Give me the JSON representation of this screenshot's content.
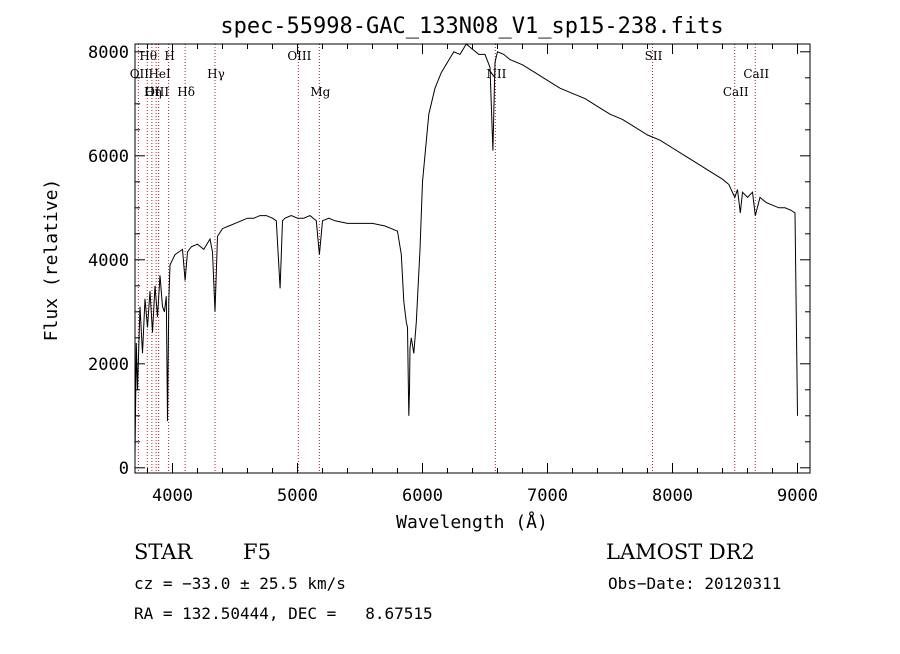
{
  "chart_data": {
    "type": "line",
    "title": "spec-55998-GAC_133N08_V1_sp15-238.fits",
    "xlabel": "Wavelength (Å)",
    "ylabel": "Flux (relative)",
    "xlim": [
      3700,
      9100
    ],
    "ylim": [
      -100,
      8150
    ],
    "xticks": [
      4000,
      5000,
      6000,
      7000,
      8000,
      9000
    ],
    "yticks": [
      0,
      2000,
      4000,
      6000,
      8000
    ],
    "grid": false,
    "series": [
      {
        "x": [
          3700,
          3710,
          3720,
          3740,
          3760,
          3780,
          3800,
          3820,
          3840,
          3860,
          3880,
          3900,
          3920,
          3935,
          3950,
          3960,
          3970,
          3980,
          4000,
          4020,
          4050,
          4080,
          4101,
          4120,
          4150,
          4200,
          4250,
          4300,
          4320,
          4340,
          4360,
          4400,
          4450,
          4500,
          4550,
          4600,
          4650,
          4700,
          4750,
          4800,
          4830,
          4861,
          4880,
          4900,
          4950,
          5000,
          5050,
          5100,
          5150,
          5175,
          5200,
          5250,
          5300,
          5400,
          5500,
          5600,
          5700,
          5750,
          5800,
          5830,
          5850,
          5870,
          5880,
          5890,
          5896,
          5900,
          5910,
          5930,
          5950,
          5980,
          6000,
          6050,
          6100,
          6150,
          6200,
          6250,
          6300,
          6350,
          6400,
          6450,
          6500,
          6540,
          6563,
          6580,
          6600,
          6650,
          6700,
          6800,
          6900,
          7000,
          7100,
          7200,
          7300,
          7400,
          7500,
          7600,
          7700,
          7800,
          7900,
          8000,
          8100,
          8200,
          8300,
          8400,
          8450,
          8498,
          8520,
          8542,
          8560,
          8600,
          8640,
          8662,
          8700,
          8750,
          8800,
          8850,
          8900,
          8950,
          8980,
          9000
        ],
        "y": [
          200,
          2400,
          1500,
          3100,
          2200,
          3250,
          2700,
          3400,
          2600,
          3500,
          2900,
          3700,
          3100,
          3000,
          3300,
          900,
          3200,
          3900,
          4000,
          4100,
          4150,
          4200,
          3600,
          4150,
          4250,
          4300,
          4200,
          4400,
          4150,
          3000,
          4450,
          4600,
          4650,
          4700,
          4750,
          4800,
          4800,
          4850,
          4850,
          4800,
          4750,
          3450,
          4750,
          4800,
          4850,
          4800,
          4800,
          4850,
          4750,
          4100,
          4750,
          4800,
          4750,
          4700,
          4700,
          4700,
          4650,
          4600,
          4550,
          4100,
          3200,
          2800,
          2700,
          1000,
          1500,
          2300,
          2500,
          2200,
          2800,
          4200,
          5500,
          6800,
          7300,
          7600,
          7800,
          8000,
          7950,
          8150,
          8050,
          7950,
          7950,
          7700,
          6100,
          7800,
          8000,
          7950,
          7850,
          7750,
          7600,
          7450,
          7300,
          7200,
          7100,
          6950,
          6800,
          6700,
          6550,
          6400,
          6300,
          6150,
          6000,
          5850,
          5700,
          5550,
          5450,
          5200,
          5350,
          4900,
          5300,
          5200,
          5300,
          4850,
          5200,
          5100,
          5050,
          5000,
          5000,
          4950,
          4900,
          1000
        ]
      }
    ],
    "spectral_lines": [
      {
        "label": "Hθ",
        "wavelength": 3798,
        "row": 1
      },
      {
        "label": "H",
        "wavelength": 3969,
        "row": 1
      },
      {
        "label": "OII",
        "wavelength": 3727,
        "row": 2
      },
      {
        "label": "HeI",
        "wavelength": 3889,
        "row": 2
      },
      {
        "label": "Hγ",
        "wavelength": 4340,
        "row": 2
      },
      {
        "label": "OIII",
        "wavelength": 3869,
        "row": 3
      },
      {
        "label": "Hη",
        "wavelength": 3835,
        "row": 3
      },
      {
        "label": "Hδ",
        "wavelength": 4101,
        "row": 3
      },
      {
        "label": "OIII",
        "wavelength": 5007,
        "row": 1
      },
      {
        "label": "Mg",
        "wavelength": 5175,
        "row": 3
      },
      {
        "label": "NII",
        "wavelength": 6583,
        "row": 2
      },
      {
        "label": "SII",
        "wavelength": 7840,
        "row": 1
      },
      {
        "label": "CaII",
        "wavelength": 8662,
        "row": 2
      },
      {
        "label": "CaII",
        "wavelength": 8498,
        "row": 3
      }
    ]
  },
  "info": {
    "object_class": "STAR",
    "subclass": "F5",
    "survey": "LAMOST DR2",
    "redshift_text": "cz = −33.0 ± 25.5 km/s",
    "obs_date_text": "Obs−Date: 20120311",
    "coords_text": "RA = 132.50444, DEC =   8.67515"
  },
  "colors": {
    "spectrum": "#000000",
    "line_markers": "#b02020",
    "axes": "#000000"
  }
}
